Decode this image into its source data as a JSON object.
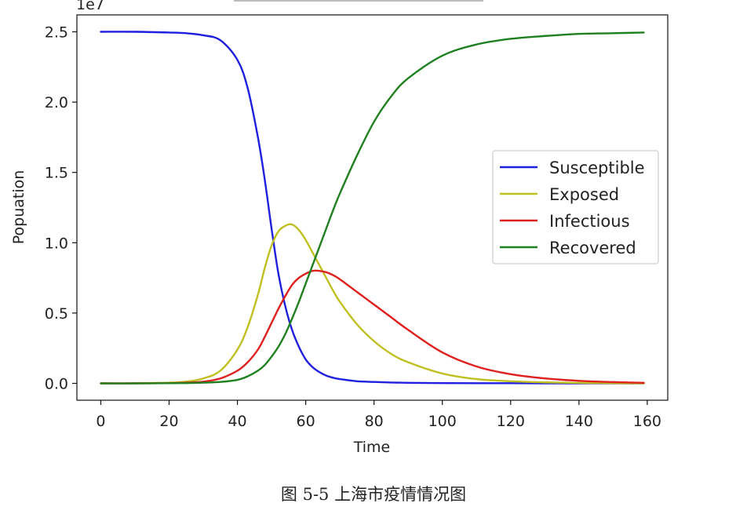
{
  "chart_data": {
    "type": "line",
    "title": "",
    "xlabel": "Time",
    "ylabel": "Popuation",
    "scale_label": "1e7",
    "xlim": [
      -7,
      166
    ],
    "ylim": [
      -0.12,
      2.62
    ],
    "xticks": [
      0,
      20,
      40,
      60,
      80,
      100,
      120,
      140,
      160
    ],
    "yticks": [
      0.0,
      0.5,
      1.0,
      1.5,
      2.0,
      2.5
    ],
    "ytick_labels": [
      "0.0",
      "0.5",
      "1.0",
      "1.5",
      "2.0",
      "2.5"
    ],
    "grid": false,
    "legend_position": "center-right",
    "x": [
      0,
      10,
      20,
      25,
      30,
      35,
      40,
      43,
      46,
      48,
      50,
      52,
      54,
      56,
      58,
      60,
      62,
      64,
      66,
      68,
      70,
      75,
      80,
      85,
      90,
      100,
      110,
      120,
      130,
      140,
      150,
      159
    ],
    "series": [
      {
        "name": "Susceptible",
        "color": "#1f1fe0",
        "values": [
          2.5,
          2.5,
          2.495,
          2.49,
          2.475,
          2.44,
          2.3,
          2.1,
          1.75,
          1.45,
          1.1,
          0.78,
          0.55,
          0.38,
          0.26,
          0.17,
          0.115,
          0.08,
          0.055,
          0.04,
          0.03,
          0.015,
          0.01,
          0.006,
          0.004,
          0.002,
          0.001,
          0.001,
          0.0,
          0.0,
          0.0,
          0.0
        ]
      },
      {
        "name": "Exposed",
        "color": "#bfbf1f",
        "values": [
          0.0,
          0.001,
          0.005,
          0.012,
          0.035,
          0.09,
          0.24,
          0.4,
          0.63,
          0.82,
          0.98,
          1.08,
          1.12,
          1.13,
          1.09,
          1.02,
          0.93,
          0.84,
          0.75,
          0.66,
          0.58,
          0.42,
          0.3,
          0.21,
          0.15,
          0.07,
          0.03,
          0.015,
          0.007,
          0.003,
          0.001,
          0.0
        ]
      },
      {
        "name": "Infectious",
        "color": "#e01f1f",
        "values": [
          0.0,
          0.0,
          0.002,
          0.005,
          0.012,
          0.035,
          0.09,
          0.15,
          0.24,
          0.33,
          0.43,
          0.53,
          0.62,
          0.7,
          0.75,
          0.78,
          0.8,
          0.8,
          0.79,
          0.77,
          0.74,
          0.65,
          0.56,
          0.47,
          0.38,
          0.22,
          0.12,
          0.065,
          0.035,
          0.018,
          0.009,
          0.004
        ]
      },
      {
        "name": "Recovered",
        "color": "#1f801f",
        "values": [
          0.0,
          0.0,
          0.001,
          0.002,
          0.005,
          0.01,
          0.025,
          0.05,
          0.09,
          0.13,
          0.19,
          0.26,
          0.35,
          0.46,
          0.58,
          0.71,
          0.84,
          0.97,
          1.1,
          1.23,
          1.35,
          1.62,
          1.86,
          2.04,
          2.17,
          2.33,
          2.41,
          2.45,
          2.47,
          2.485,
          2.49,
          2.495
        ]
      }
    ]
  },
  "caption": "图 5-5 上海市疫情情况图"
}
